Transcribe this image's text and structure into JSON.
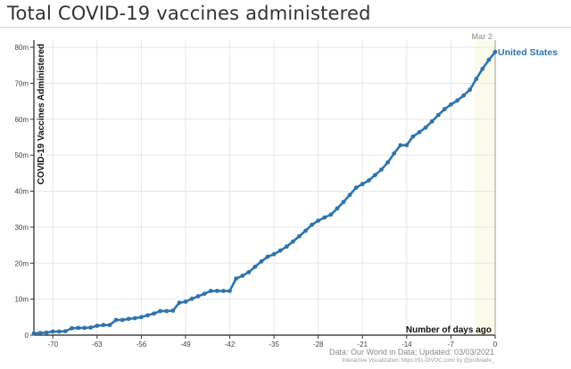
{
  "title": "Total COVID-19 vaccines administered",
  "chart_data": {
    "type": "line",
    "ylabel": "COVID-19 Vaccines Administered",
    "xlabel": "Number of days ago",
    "xlim": [
      -73,
      0
    ],
    "ylim": [
      0,
      82000000
    ],
    "x_ticks": [
      -70,
      -63,
      -56,
      -49,
      -42,
      -35,
      -28,
      -21,
      -14,
      -7,
      0
    ],
    "y_ticks": [
      {
        "value": 0,
        "label": "0"
      },
      {
        "value": 10000000,
        "label": "10m"
      },
      {
        "value": 20000000,
        "label": "20m"
      },
      {
        "value": 30000000,
        "label": "30m"
      },
      {
        "value": 40000000,
        "label": "40m"
      },
      {
        "value": 50000000,
        "label": "50m"
      },
      {
        "value": 60000000,
        "label": "60m"
      },
      {
        "value": 70000000,
        "label": "70m"
      },
      {
        "value": 80000000,
        "label": "80m"
      }
    ],
    "grid": true,
    "end_date_label": "Mar 2",
    "line_color": "#2e74ad",
    "series": [
      {
        "name": "United States",
        "x": [
          -73,
          -72,
          -71,
          -70,
          -69,
          -68,
          -67,
          -66,
          -65,
          -64,
          -63,
          -62,
          -61,
          -60,
          -59,
          -58,
          -57,
          -56,
          -55,
          -54,
          -53,
          -52,
          -51,
          -50,
          -49,
          -48,
          -47,
          -46,
          -45,
          -44,
          -43,
          -42,
          -41,
          -40,
          -39,
          -38,
          -37,
          -36,
          -35,
          -34,
          -33,
          -32,
          -31,
          -30,
          -29,
          -28,
          -27,
          -26,
          -25,
          -24,
          -23,
          -22,
          -21,
          -20,
          -19,
          -18,
          -17,
          -16,
          -15,
          -14,
          -13,
          -12,
          -11,
          -10,
          -9,
          -8,
          -7,
          -6,
          -5,
          -4,
          -3,
          -2,
          -1,
          0
        ],
        "values": [
          500000,
          600000,
          700000,
          1000000,
          1000000,
          1100000,
          1900000,
          2000000,
          2000000,
          2100000,
          2600000,
          2800000,
          2800000,
          4200000,
          4200000,
          4500000,
          4700000,
          5000000,
          5500000,
          6000000,
          6700000,
          6700000,
          6800000,
          9000000,
          9300000,
          10100000,
          10800000,
          11500000,
          12300000,
          12300000,
          12300000,
          12300000,
          15700000,
          16500000,
          17500000,
          19000000,
          20500000,
          21800000,
          22500000,
          23500000,
          24600000,
          26000000,
          27500000,
          29000000,
          30700000,
          31800000,
          32700000,
          33500000,
          35200000,
          37000000,
          39000000,
          41000000,
          42000000,
          43000000,
          44500000,
          46000000,
          48000000,
          50500000,
          52800000,
          52800000,
          55200000,
          56400000,
          57700000,
          59400000,
          61200000,
          62800000,
          64100000,
          65200000,
          66600000,
          68200000,
          71200000,
          74000000,
          76500000,
          78700000
        ]
      }
    ]
  },
  "source": "Data: Our World in Data; Updated: 03/03/2021",
  "credit": "Interactive Visualization: https://91-DIVOC.com/ by @profwade_"
}
